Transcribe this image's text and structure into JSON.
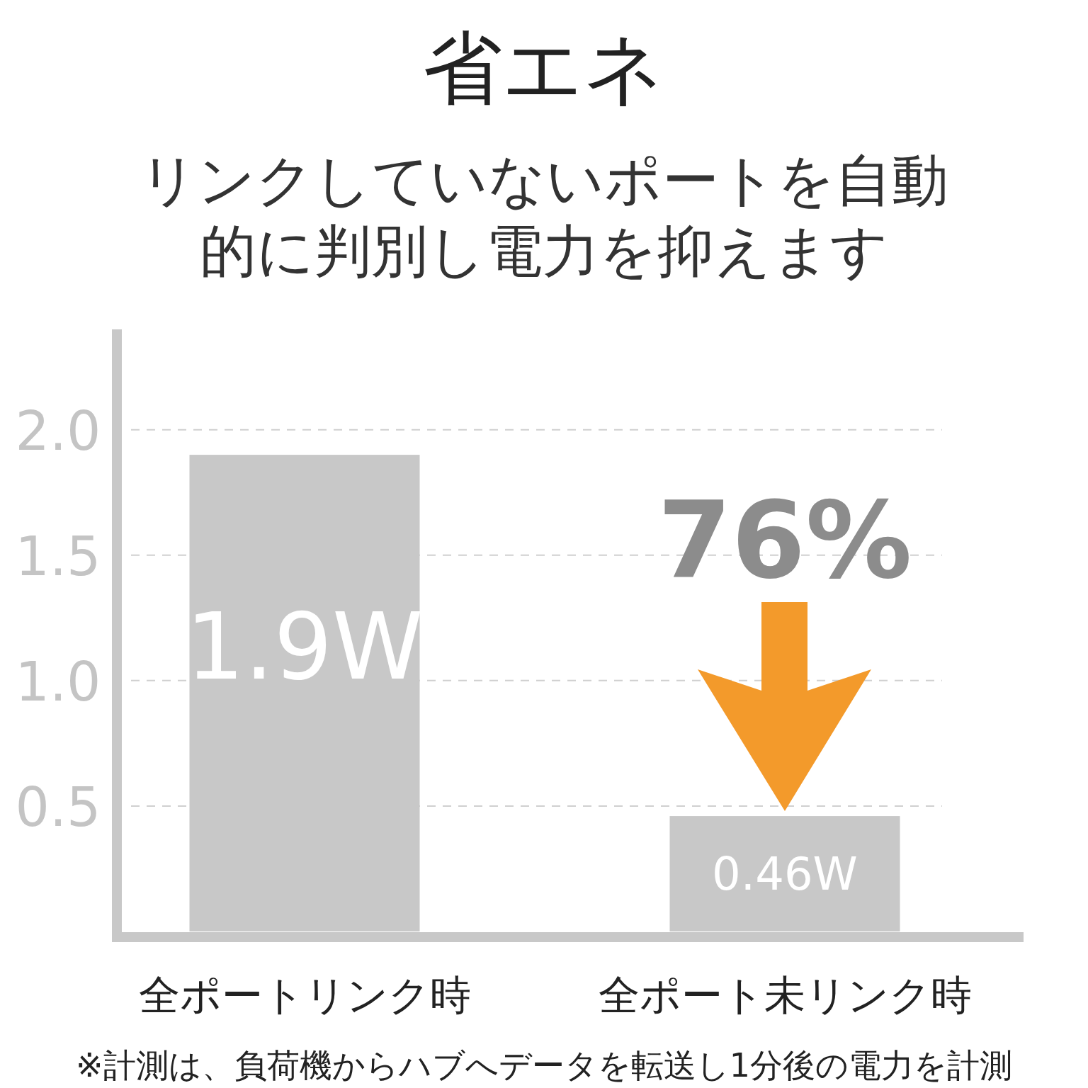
{
  "chart_data": {
    "type": "bar",
    "title": "省エネ",
    "subtitle": "リンクしていないポートを自動的に判別し電力を抑えます",
    "categories": [
      "全ポートリンク時",
      "全ポート未リンク時"
    ],
    "values": [
      1.9,
      0.46
    ],
    "color": "#c8c8c8",
    "value_labels": [
      "1.9W",
      "0.46W"
    ],
    "ylim": [
      0,
      2.4
    ],
    "yticks": [
      {
        "value": 0.5,
        "label": "0.5"
      },
      {
        "value": 1,
        "label": "1.0"
      },
      {
        "value": 1.5,
        "label": "1.5"
      },
      {
        "value": 2,
        "label": "2.0"
      }
    ],
    "grid": "y",
    "annotations": [
      "76%",
      "※計測は、負荷機からハブへデータを転送し1分後の電力を計測"
    ]
  }
}
